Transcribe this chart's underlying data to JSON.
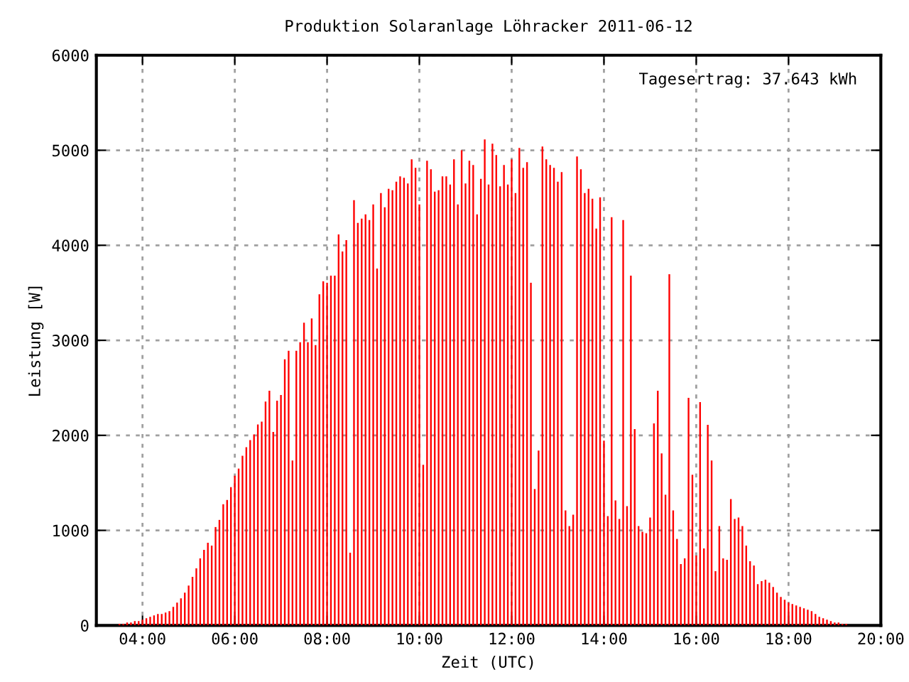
{
  "chart_data": {
    "type": "bar",
    "title": "Produktion Solaranlage Löhracker 2011-06-12",
    "xlabel": "Zeit (UTC)",
    "ylabel": "Leistung [W]",
    "annotations": [
      "Tagesertrag: 37.643 kWh"
    ],
    "x": [
      "2011-06-12T03:30",
      "2011-06-12T03:35",
      "2011-06-12T03:40",
      "2011-06-12T03:45",
      "2011-06-12T03:50",
      "2011-06-12T03:55",
      "2011-06-12T04:00",
      "2011-06-12T04:05",
      "2011-06-12T04:10",
      "2011-06-12T04:15",
      "2011-06-12T04:20",
      "2011-06-12T04:25",
      "2011-06-12T04:30",
      "2011-06-12T04:35",
      "2011-06-12T04:40",
      "2011-06-12T04:45",
      "2011-06-12T04:50",
      "2011-06-12T04:55",
      "2011-06-12T05:00",
      "2011-06-12T05:05",
      "2011-06-12T05:10",
      "2011-06-12T05:15",
      "2011-06-12T05:20",
      "2011-06-12T05:25",
      "2011-06-12T05:30",
      "2011-06-12T05:35",
      "2011-06-12T05:40",
      "2011-06-12T05:45",
      "2011-06-12T05:50",
      "2011-06-12T05:55",
      "2011-06-12T06:00",
      "2011-06-12T06:05",
      "2011-06-12T06:10",
      "2011-06-12T06:15",
      "2011-06-12T06:20",
      "2011-06-12T06:25",
      "2011-06-12T06:30",
      "2011-06-12T06:35",
      "2011-06-12T06:40",
      "2011-06-12T06:45",
      "2011-06-12T06:50",
      "2011-06-12T06:55",
      "2011-06-12T07:00",
      "2011-06-12T07:05",
      "2011-06-12T07:10",
      "2011-06-12T07:15",
      "2011-06-12T07:20",
      "2011-06-12T07:25",
      "2011-06-12T07:30",
      "2011-06-12T07:35",
      "2011-06-12T07:40",
      "2011-06-12T07:45",
      "2011-06-12T07:50",
      "2011-06-12T07:55",
      "2011-06-12T08:00",
      "2011-06-12T08:05",
      "2011-06-12T08:10",
      "2011-06-12T08:15",
      "2011-06-12T08:20",
      "2011-06-12T08:25",
      "2011-06-12T08:30",
      "2011-06-12T08:35",
      "2011-06-12T08:40",
      "2011-06-12T08:45",
      "2011-06-12T08:50",
      "2011-06-12T08:55",
      "2011-06-12T09:00",
      "2011-06-12T09:05",
      "2011-06-12T09:10",
      "2011-06-12T09:15",
      "2011-06-12T09:20",
      "2011-06-12T09:25",
      "2011-06-12T09:30",
      "2011-06-12T09:35",
      "2011-06-12T09:40",
      "2011-06-12T09:45",
      "2011-06-12T09:50",
      "2011-06-12T09:55",
      "2011-06-12T10:00",
      "2011-06-12T10:05",
      "2011-06-12T10:10",
      "2011-06-12T10:15",
      "2011-06-12T10:20",
      "2011-06-12T10:25",
      "2011-06-12T10:30",
      "2011-06-12T10:35",
      "2011-06-12T10:40",
      "2011-06-12T10:45",
      "2011-06-12T10:50",
      "2011-06-12T10:55",
      "2011-06-12T11:00",
      "2011-06-12T11:05",
      "2011-06-12T11:10",
      "2011-06-12T11:15",
      "2011-06-12T11:20",
      "2011-06-12T11:25",
      "2011-06-12T11:30",
      "2011-06-12T11:35",
      "2011-06-12T11:40",
      "2011-06-12T11:45",
      "2011-06-12T11:50",
      "2011-06-12T11:55",
      "2011-06-12T12:00",
      "2011-06-12T12:05",
      "2011-06-12T12:10",
      "2011-06-12T12:15",
      "2011-06-12T12:20",
      "2011-06-12T12:25",
      "2011-06-12T12:30",
      "2011-06-12T12:35",
      "2011-06-12T12:40",
      "2011-06-12T12:45",
      "2011-06-12T12:50",
      "2011-06-12T12:55",
      "2011-06-12T13:00",
      "2011-06-12T13:05",
      "2011-06-12T13:10",
      "2011-06-12T13:15",
      "2011-06-12T13:20",
      "2011-06-12T13:25",
      "2011-06-12T13:30",
      "2011-06-12T13:35",
      "2011-06-12T13:40",
      "2011-06-12T13:45",
      "2011-06-12T13:50",
      "2011-06-12T13:55",
      "2011-06-12T14:00",
      "2011-06-12T14:05",
      "2011-06-12T14:10",
      "2011-06-12T14:15",
      "2011-06-12T14:20",
      "2011-06-12T14:25",
      "2011-06-12T14:30",
      "2011-06-12T14:35",
      "2011-06-12T14:40",
      "2011-06-12T14:45",
      "2011-06-12T14:50",
      "2011-06-12T14:55",
      "2011-06-12T15:00",
      "2011-06-12T15:05",
      "2011-06-12T15:10",
      "2011-06-12T15:15",
      "2011-06-12T15:20",
      "2011-06-12T15:25",
      "2011-06-12T15:30",
      "2011-06-12T15:35",
      "2011-06-12T15:40",
      "2011-06-12T15:45",
      "2011-06-12T15:50",
      "2011-06-12T15:55",
      "2011-06-12T16:00",
      "2011-06-12T16:05",
      "2011-06-12T16:10",
      "2011-06-12T16:15",
      "2011-06-12T16:20",
      "2011-06-12T16:25",
      "2011-06-12T16:30",
      "2011-06-12T16:35",
      "2011-06-12T16:40",
      "2011-06-12T16:45",
      "2011-06-12T16:50",
      "2011-06-12T16:55",
      "2011-06-12T17:00",
      "2011-06-12T17:05",
      "2011-06-12T17:10",
      "2011-06-12T17:15",
      "2011-06-12T17:20",
      "2011-06-12T17:25",
      "2011-06-12T17:30",
      "2011-06-12T17:35",
      "2011-06-12T17:40",
      "2011-06-12T17:45",
      "2011-06-12T17:50",
      "2011-06-12T17:55",
      "2011-06-12T18:00",
      "2011-06-12T18:05",
      "2011-06-12T18:10",
      "2011-06-12T18:15",
      "2011-06-12T18:20",
      "2011-06-12T18:25",
      "2011-06-12T18:30",
      "2011-06-12T18:35",
      "2011-06-12T18:40",
      "2011-06-12T18:45",
      "2011-06-12T18:50",
      "2011-06-12T18:55",
      "2011-06-12T19:00",
      "2011-06-12T19:05",
      "2011-06-12T19:10",
      "2011-06-12T19:15"
    ],
    "series": [
      {
        "color": "#ff0000",
        "values": [
          15,
          15,
          30,
          30,
          45,
          45,
          60,
          75,
          90,
          105,
          120,
          120,
          135,
          150,
          195,
          240,
          285,
          345,
          420,
          510,
          600,
          705,
          795,
          870,
          840,
          1035,
          1110,
          1275,
          1320,
          1455,
          1575,
          1650,
          1785,
          1875,
          1950,
          2010,
          2115,
          2145,
          2355,
          2470,
          2035,
          2365,
          2425,
          2800,
          2890,
          1735,
          2890,
          2980,
          3185,
          2980,
          3230,
          2950,
          3485,
          3620,
          3605,
          3680,
          3680,
          4115,
          3935,
          4055,
          765,
          4475,
          4235,
          4280,
          4325,
          4265,
          4430,
          3755,
          4550,
          4400,
          4595,
          4580,
          4670,
          4725,
          4710,
          4650,
          4905,
          4815,
          4430,
          1690,
          4890,
          4800,
          4565,
          4580,
          4725,
          4725,
          4640,
          4905,
          4430,
          5000,
          4650,
          4890,
          4845,
          4325,
          4700,
          5115,
          4640,
          5070,
          4950,
          4620,
          4845,
          4640,
          4905,
          4550,
          5025,
          4815,
          4875,
          3605,
          1435,
          1840,
          5040,
          4905,
          4845,
          4815,
          4670,
          4770,
          1210,
          1045,
          1165,
          4935,
          4800,
          4550,
          4595,
          4490,
          4175,
          4505,
          1945,
          1150,
          4295,
          1315,
          1120,
          4265,
          1255,
          3680,
          2065,
          1045,
          985,
          970,
          1135,
          2125,
          2470,
          1810,
          1375,
          3695,
          1210,
          910,
          645,
          705,
          2395,
          1585,
          735,
          2350,
          810,
          2110,
          1735,
          570,
          1045,
          705,
          690,
          1330,
          1120,
          1135,
          1045,
          840,
          675,
          630,
          435,
          465,
          480,
          450,
          405,
          345,
          300,
          270,
          240,
          225,
          210,
          195,
          180,
          165,
          150,
          120,
          90,
          75,
          60,
          45,
          30,
          30,
          15,
          15
        ]
      }
    ],
    "xlim": [
      "2011-06-12T03:00",
      "2011-06-12T20:00"
    ],
    "xticks": [
      {
        "value": "2011-06-12T04:00",
        "label": "04:00"
      },
      {
        "value": "2011-06-12T06:00",
        "label": "06:00"
      },
      {
        "value": "2011-06-12T08:00",
        "label": "08:00"
      },
      {
        "value": "2011-06-12T10:00",
        "label": "10:00"
      },
      {
        "value": "2011-06-12T12:00",
        "label": "12:00"
      },
      {
        "value": "2011-06-12T14:00",
        "label": "14:00"
      },
      {
        "value": "2011-06-12T16:00",
        "label": "16:00"
      },
      {
        "value": "2011-06-12T18:00",
        "label": "18:00"
      },
      {
        "value": "2011-06-12T20:00",
        "label": "20:00"
      }
    ],
    "ylim": [
      0,
      6000
    ],
    "yticks": [
      0,
      1000,
      2000,
      3000,
      4000,
      5000,
      6000
    ],
    "grid": true
  }
}
